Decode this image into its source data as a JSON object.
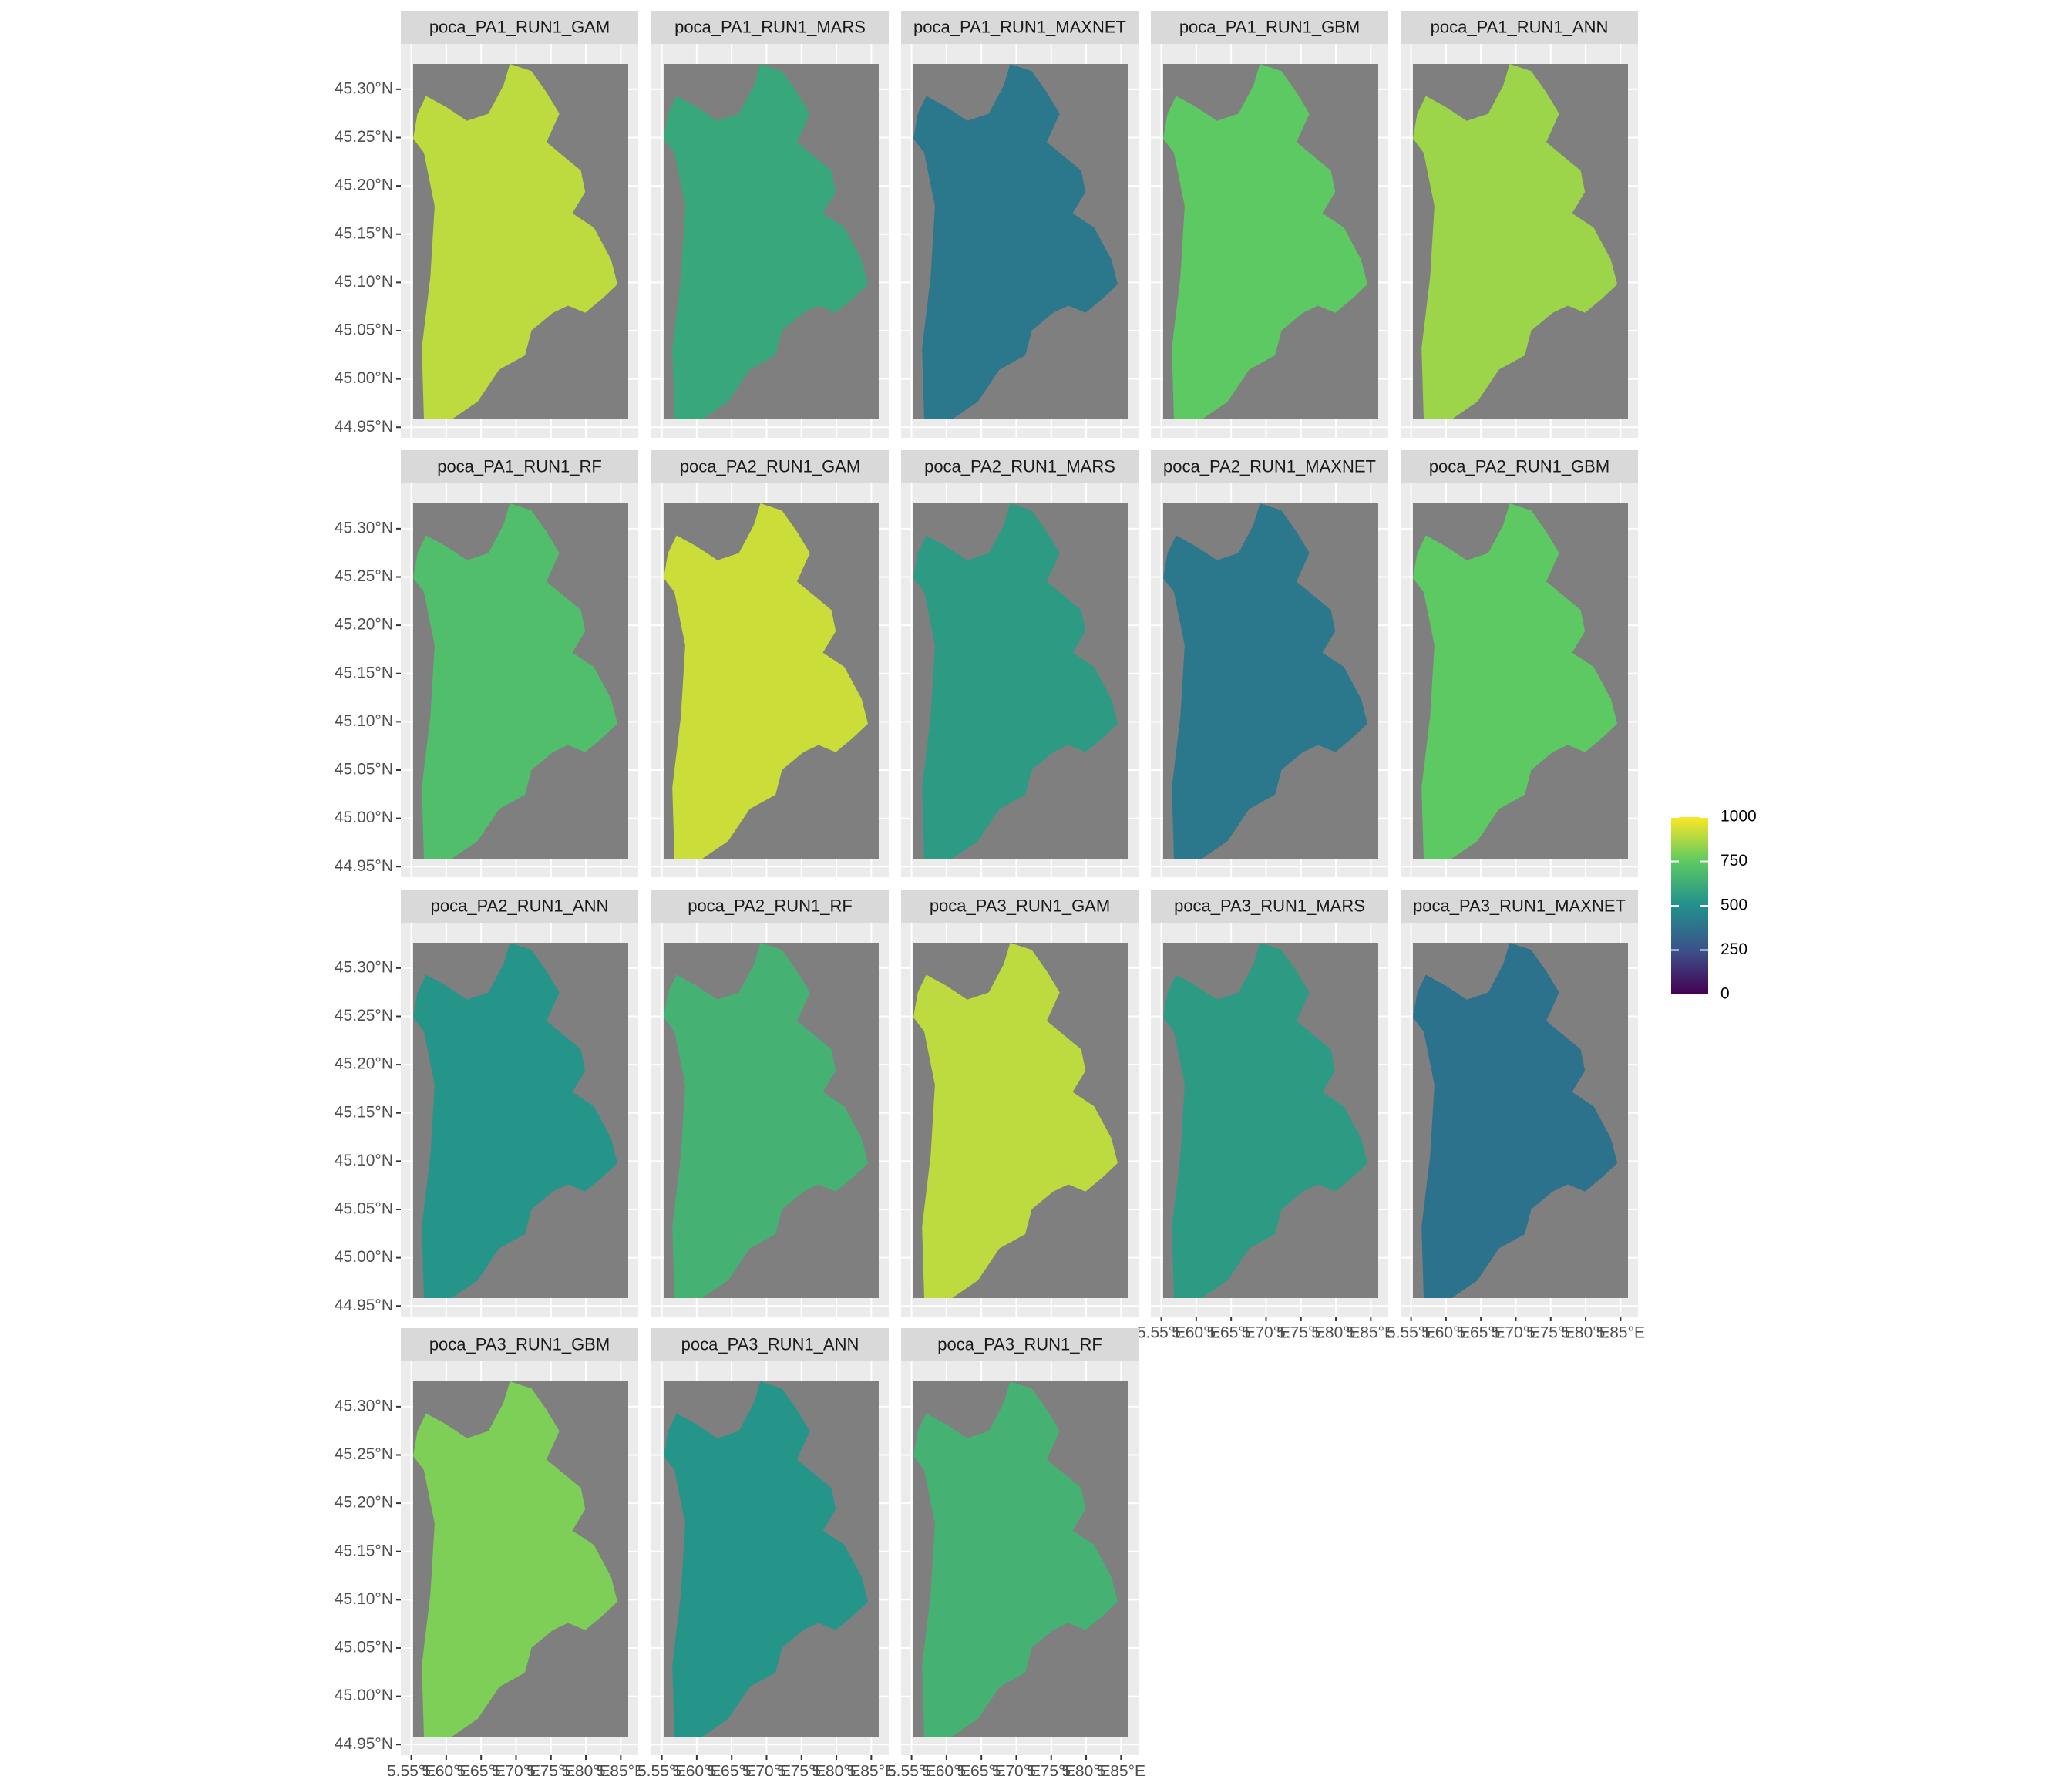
{
  "chart_data": {
    "type": "raster-facets",
    "colormap": "viridis",
    "ncol": 5,
    "panels": [
      {
        "title": "poca_PA1_RUN1_GAM",
        "value": 900
      },
      {
        "title": "poca_PA1_RUN1_MARS",
        "value": 600
      },
      {
        "title": "poca_PA1_RUN1_MAXNET",
        "value": 400
      },
      {
        "title": "poca_PA1_RUN1_GBM",
        "value": 750
      },
      {
        "title": "poca_PA1_RUN1_ANN",
        "value": 850
      },
      {
        "title": "poca_PA1_RUN1_RF",
        "value": 700
      },
      {
        "title": "poca_PA2_RUN1_GAM",
        "value": 920
      },
      {
        "title": "poca_PA2_RUN1_MARS",
        "value": 550
      },
      {
        "title": "poca_PA2_RUN1_MAXNET",
        "value": 400
      },
      {
        "title": "poca_PA2_RUN1_GBM",
        "value": 750
      },
      {
        "title": "poca_PA2_RUN1_ANN",
        "value": 520
      },
      {
        "title": "poca_PA2_RUN1_RF",
        "value": 650
      },
      {
        "title": "poca_PA3_RUN1_GAM",
        "value": 900
      },
      {
        "title": "poca_PA3_RUN1_MARS",
        "value": 550
      },
      {
        "title": "poca_PA3_RUN1_MAXNET",
        "value": 380
      },
      {
        "title": "poca_PA3_RUN1_GBM",
        "value": 800
      },
      {
        "title": "poca_PA3_RUN1_ANN",
        "value": 520
      },
      {
        "title": "poca_PA3_RUN1_RF",
        "value": 650
      }
    ],
    "xlim": [
      5.535,
      5.875
    ],
    "ylim": [
      44.939,
      45.347
    ],
    "xticks": [
      {
        "value": 5.55,
        "label": "5.55°E"
      },
      {
        "value": 5.6,
        "label": "5.60°E"
      },
      {
        "value": 5.65,
        "label": "5.65°E"
      },
      {
        "value": 5.7,
        "label": "5.70°E"
      },
      {
        "value": 5.75,
        "label": "5.75°E"
      },
      {
        "value": 5.8,
        "label": "5.80°E"
      },
      {
        "value": 5.85,
        "label": "5.85°E"
      }
    ],
    "yticks": [
      {
        "value": 44.95,
        "label": "44.95°N"
      },
      {
        "value": 45.0,
        "label": "45.00°N"
      },
      {
        "value": 45.05,
        "label": "45.05°N"
      },
      {
        "value": 45.1,
        "label": "45.10°N"
      },
      {
        "value": 45.15,
        "label": "45.15°N"
      },
      {
        "value": 45.2,
        "label": "45.20°N"
      },
      {
        "value": 45.25,
        "label": "45.25°N"
      },
      {
        "value": 45.3,
        "label": "45.30°N"
      }
    ],
    "legend": {
      "lim": [
        0,
        1000
      ],
      "ticks": [
        0,
        250,
        500,
        750,
        1000
      ]
    }
  }
}
